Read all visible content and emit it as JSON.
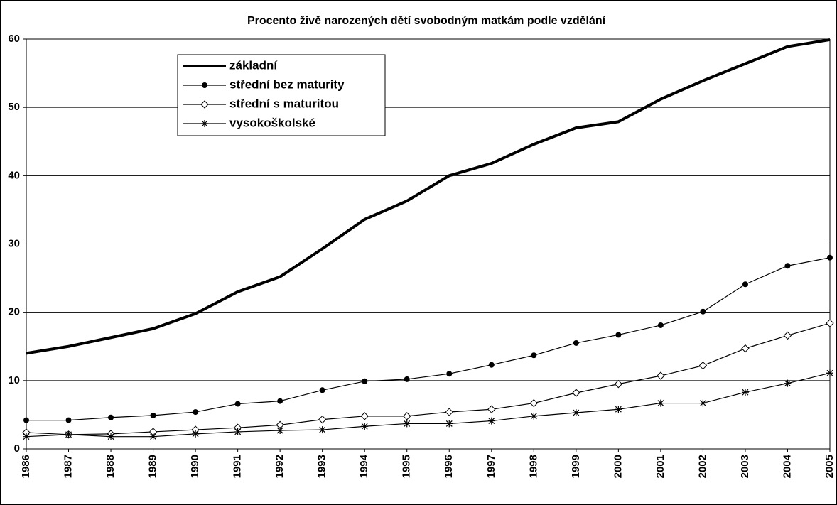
{
  "chart_data": {
    "type": "line",
    "title": "Procento živě narozených dětí  svobodným matkám podle vzdělání",
    "categories": [
      "1986",
      "1987",
      "1988",
      "1989",
      "1990",
      "1991",
      "1992",
      "1993",
      "1994",
      "1995",
      "1996",
      "1997",
      "1998",
      "1999",
      "2000",
      "2001",
      "2002",
      "2003",
      "2004",
      "2005"
    ],
    "series": [
      {
        "name": "základní",
        "color": "#000000",
        "marker": "none",
        "width": 4,
        "values": [
          14,
          15,
          16.3,
          17.6,
          19.8,
          23,
          25.2,
          29.3,
          33.6,
          36.3,
          40,
          41.8,
          44.6,
          47,
          47.9,
          51.2,
          53.9,
          56.4,
          58.9,
          59.9
        ]
      },
      {
        "name": "střední bez maturity",
        "color": "#000000",
        "marker": "circle",
        "width": 1.2,
        "values": [
          4.2,
          4.2,
          4.6,
          4.9,
          5.4,
          6.6,
          7,
          8.6,
          9.9,
          10.2,
          11,
          12.3,
          13.7,
          15.5,
          16.7,
          18.1,
          20.1,
          24.1,
          26.8,
          28
        ]
      },
      {
        "name": "střední s maturitou",
        "color": "#000000",
        "marker": "diamond",
        "width": 1.2,
        "values": [
          2.4,
          2.1,
          2.2,
          2.5,
          2.8,
          3.1,
          3.5,
          4.3,
          4.8,
          4.8,
          5.4,
          5.8,
          6.7,
          8.2,
          9.5,
          10.7,
          12.2,
          14.7,
          16.6,
          18.4
        ]
      },
      {
        "name": "vysokoškolské",
        "color": "#000000",
        "marker": "star",
        "width": 1.2,
        "values": [
          1.8,
          2.1,
          1.8,
          1.8,
          2.2,
          2.5,
          2.7,
          2.8,
          3.3,
          3.7,
          3.7,
          4.1,
          4.8,
          5.3,
          5.8,
          6.7,
          6.7,
          8.3,
          9.6,
          11.1
        ]
      }
    ],
    "ylim": [
      0,
      60
    ],
    "yticks": [
      0,
      10,
      20,
      30,
      40,
      50,
      60
    ],
    "grid": true
  }
}
